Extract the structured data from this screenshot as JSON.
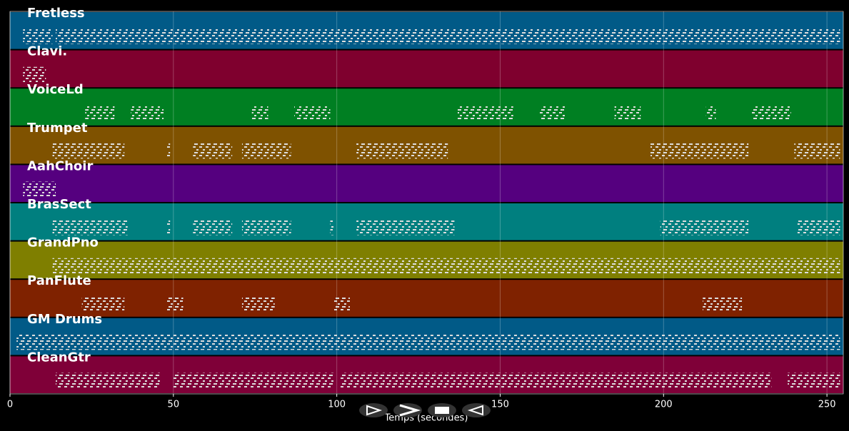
{
  "chart_data": {
    "type": "piano-roll",
    "xlabel": "Temps (secondes)",
    "xlim": [
      0,
      255
    ],
    "xticks": [
      0,
      50,
      100,
      150,
      200,
      250
    ],
    "grid": true,
    "series": [
      {
        "name": "Fretless",
        "color": "#015a87",
        "values": [
          [
            4,
            13
          ],
          [
            14,
            254
          ]
        ]
      },
      {
        "name": "Clavi.",
        "color": "#7f002e",
        "values": [
          [
            4,
            11
          ]
        ]
      },
      {
        "name": "VoiceLd",
        "color": "#007f22",
        "values": [
          [
            23,
            32
          ],
          [
            37,
            47
          ],
          [
            74,
            79
          ],
          [
            87,
            98
          ],
          [
            137,
            154
          ],
          [
            162,
            170
          ],
          [
            185,
            193
          ],
          [
            213,
            216
          ],
          [
            227,
            239
          ]
        ]
      },
      {
        "name": "Trumpet",
        "color": "#7f5200",
        "values": [
          [
            13,
            35
          ],
          [
            48,
            49
          ],
          [
            56,
            68
          ],
          [
            71,
            86
          ],
          [
            106,
            134
          ],
          [
            196,
            226
          ],
          [
            240,
            254
          ]
        ]
      },
      {
        "name": "AahChoir",
        "color": "#55007f",
        "values": [
          [
            4,
            14
          ]
        ]
      },
      {
        "name": "BrasSect",
        "color": "#007f7f",
        "values": [
          [
            13,
            36
          ],
          [
            48,
            49
          ],
          [
            56,
            68
          ],
          [
            71,
            86
          ],
          [
            98,
            99
          ],
          [
            106,
            136
          ],
          [
            199,
            226
          ],
          [
            241,
            254
          ]
        ]
      },
      {
        "name": "GrandPno",
        "color": "#7f7f00",
        "values": [
          [
            13,
            254
          ]
        ]
      },
      {
        "name": "PanFlute",
        "color": "#7f2200",
        "values": [
          [
            22,
            35
          ],
          [
            48,
            53
          ],
          [
            71,
            81
          ],
          [
            99,
            104
          ],
          [
            212,
            224
          ]
        ]
      },
      {
        "name": "GM Drums",
        "color": "#015a87",
        "values": [
          [
            2,
            254
          ]
        ]
      },
      {
        "name": "CleanGtr",
        "color": "#7f0038",
        "values": [
          [
            14,
            46
          ],
          [
            50,
            99
          ],
          [
            101,
            233
          ],
          [
            238,
            254
          ]
        ]
      }
    ]
  }
}
